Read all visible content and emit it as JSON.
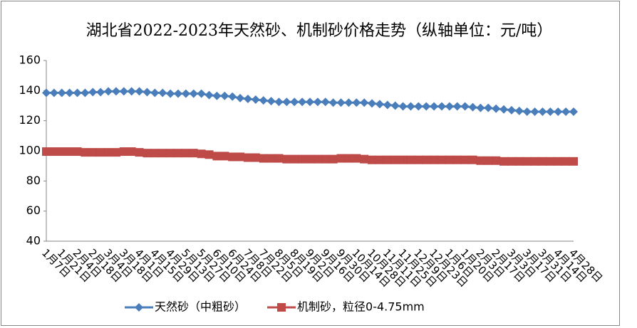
{
  "chart_data": {
    "type": "line",
    "title": "湖北省2022-2023年天然砂、机制砂价格走势（纵轴单位：元/吨）",
    "categories": [
      "1月7日",
      null,
      "1月21日",
      null,
      "2月4日",
      null,
      "2月18日",
      null,
      "3月4日",
      null,
      "3月18日",
      null,
      "4月1日",
      null,
      "4月15日",
      null,
      "4月29日",
      null,
      "5月13日",
      null,
      "5月27日",
      null,
      "6月10日",
      null,
      "6月24日",
      null,
      "7月8日",
      null,
      "7月22日",
      null,
      "8月5日",
      null,
      "8月19日",
      null,
      "9月2日",
      null,
      "9月16日",
      null,
      "9月30日",
      null,
      "10月14日",
      null,
      "10月28日",
      null,
      "11月11日",
      null,
      "11月25日",
      null,
      "12月9日",
      null,
      "12月23日",
      null,
      "1月6日",
      null,
      "1月20日",
      null,
      "2月3日",
      null,
      "2月17日",
      null,
      "3月3日",
      null,
      "3月17日",
      null,
      "3月31日",
      null,
      "4月14日",
      null,
      "4月28日"
    ],
    "series": [
      {
        "name": "天然砂（中粗砂）",
        "color": "#4a7ebb",
        "marker": "diamond",
        "values": [
          138.5,
          138.5,
          138.5,
          138.5,
          138.5,
          138.5,
          139,
          139,
          139.5,
          139.5,
          139.5,
          139.5,
          139.5,
          139,
          138.5,
          138.5,
          138,
          138,
          138,
          138,
          138,
          137,
          136.5,
          136.5,
          136,
          135,
          134.5,
          134,
          133.5,
          133,
          132.5,
          132.5,
          132.5,
          132.5,
          132.5,
          132.5,
          132.5,
          132,
          132,
          132,
          132,
          132,
          131.5,
          131,
          130.5,
          130,
          129.5,
          129.5,
          129.5,
          129.5,
          129.5,
          129.5,
          129.5,
          129.5,
          129.5,
          129,
          128.5,
          128.5,
          128,
          127.5,
          127,
          126.5,
          126,
          126,
          126,
          126,
          126,
          126,
          126
        ]
      },
      {
        "name": "机制砂，粒径0-4.75mm",
        "color": "#be4b48",
        "marker": "square",
        "values": [
          99.5,
          99.5,
          99.5,
          99.5,
          99.5,
          99,
          99,
          99,
          99,
          99,
          99.5,
          99.5,
          99,
          98.5,
          98.5,
          98.5,
          98.5,
          98.5,
          98.5,
          98.5,
          98,
          97.5,
          96.5,
          96.5,
          96,
          96,
          95.5,
          95.5,
          95,
          95,
          95,
          94.5,
          94.5,
          94.5,
          94.5,
          94.5,
          94.5,
          94.5,
          95,
          95,
          95,
          94.5,
          94,
          94,
          94,
          94,
          94,
          94,
          94,
          94,
          94,
          94,
          94,
          94,
          94,
          94,
          93.5,
          93.5,
          93.5,
          93,
          93,
          93,
          93,
          93,
          93,
          93,
          93,
          93,
          93
        ]
      }
    ],
    "ylim": [
      40,
      160
    ],
    "yticks": [
      40,
      60,
      80,
      100,
      120,
      140,
      160
    ],
    "grid": false,
    "legend": "bottom"
  }
}
